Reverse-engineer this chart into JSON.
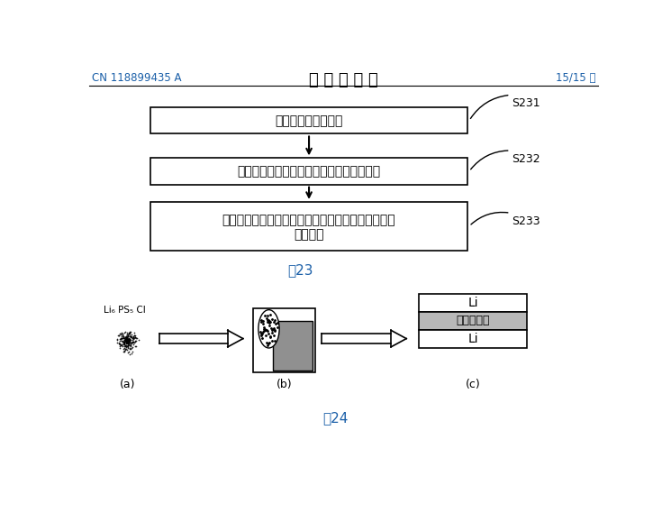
{
  "page_label_left": "CN 118899435 A",
  "page_label_center": "说 明 书 附 图",
  "page_label_right": "15/15 页",
  "fig23_label": "图23",
  "fig24_label": "图24",
  "box1_text": "形成掺杂硫化物材料",
  "box2_text": "利用掺杂硫化物材料形成硫化物固态电解质",
  "box3_line1": "组装金属锤负极、硫化物固态电解质和正极，得到锤",
  "box3_line2": "离子电池",
  "s231": "S231",
  "s232": "S232",
  "s233": "S233",
  "label_a": "(a)",
  "label_b": "(b)",
  "label_c": "(c)",
  "fig24_a_text_line1": "Li₆ PS₅ Cl",
  "fig24_c_top": "Li",
  "fig24_c_mid": "固态电解质",
  "fig24_c_bot": "Li",
  "blue_color": "#1a5fa8",
  "black": "#000000",
  "white": "#ffffff",
  "mid_gray": "#c0c0c0",
  "dark_gray": "#808080"
}
